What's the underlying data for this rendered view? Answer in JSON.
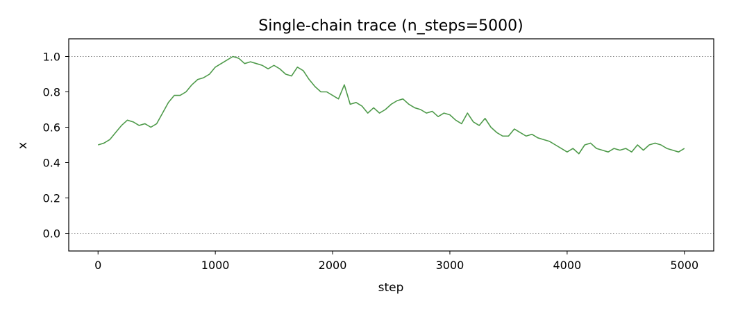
{
  "chart_data": {
    "type": "line",
    "title": "Single-chain trace (n_steps=5000)",
    "xlabel": "step",
    "ylabel": "x",
    "xlim": [
      -250,
      5250
    ],
    "ylim": [
      -0.1,
      1.1
    ],
    "xticks": [
      0,
      1000,
      2000,
      3000,
      4000,
      5000
    ],
    "yticks": [
      0.0,
      0.2,
      0.4,
      0.6,
      0.8,
      1.0
    ],
    "xtick_labels": [
      "0",
      "1000",
      "2000",
      "3000",
      "4000",
      "5000"
    ],
    "ytick_labels": [
      "0.0",
      "0.2",
      "0.4",
      "0.6",
      "0.8",
      "1.0"
    ],
    "reference_lines": [
      0.0,
      1.0
    ],
    "grid": false,
    "colors": {
      "series": "#4e9a4a",
      "reference": "#888888",
      "axes": "#000000"
    },
    "series": [
      {
        "x": [
          0,
          50,
          100,
          150,
          200,
          250,
          300,
          350,
          400,
          450,
          500,
          550,
          600,
          650,
          700,
          750,
          800,
          850,
          900,
          950,
          1000,
          1050,
          1100,
          1150,
          1200,
          1250,
          1300,
          1350,
          1400,
          1450,
          1500,
          1550,
          1600,
          1650,
          1700,
          1750,
          1800,
          1850,
          1900,
          1950,
          2000,
          2050,
          2100,
          2150,
          2200,
          2250,
          2300,
          2350,
          2400,
          2450,
          2500,
          2550,
          2600,
          2650,
          2700,
          2750,
          2800,
          2850,
          2900,
          2950,
          3000,
          3050,
          3100,
          3150,
          3200,
          3250,
          3300,
          3350,
          3400,
          3450,
          3500,
          3550,
          3600,
          3650,
          3700,
          3750,
          3800,
          3850,
          3900,
          3950,
          4000,
          4050,
          4100,
          4150,
          4200,
          4250,
          4300,
          4350,
          4400,
          4450,
          4500,
          4550,
          4600,
          4650,
          4700,
          4750,
          4800,
          4850,
          4900,
          4950,
          5000
        ],
        "y": [
          0.5,
          0.51,
          0.53,
          0.57,
          0.61,
          0.64,
          0.63,
          0.61,
          0.62,
          0.6,
          0.62,
          0.68,
          0.74,
          0.78,
          0.78,
          0.8,
          0.84,
          0.87,
          0.88,
          0.9,
          0.94,
          0.96,
          0.98,
          1.0,
          0.99,
          0.96,
          0.97,
          0.96,
          0.95,
          0.93,
          0.95,
          0.93,
          0.9,
          0.89,
          0.94,
          0.92,
          0.87,
          0.83,
          0.8,
          0.8,
          0.78,
          0.76,
          0.84,
          0.73,
          0.74,
          0.72,
          0.68,
          0.71,
          0.68,
          0.7,
          0.73,
          0.75,
          0.76,
          0.73,
          0.71,
          0.7,
          0.68,
          0.69,
          0.66,
          0.68,
          0.67,
          0.64,
          0.62,
          0.68,
          0.63,
          0.61,
          0.65,
          0.6,
          0.57,
          0.55,
          0.55,
          0.59,
          0.57,
          0.55,
          0.56,
          0.54,
          0.53,
          0.52,
          0.5,
          0.48,
          0.46,
          0.48,
          0.45,
          0.5,
          0.51,
          0.48,
          0.47,
          0.46,
          0.48,
          0.47,
          0.48,
          0.46,
          0.5,
          0.47,
          0.5,
          0.51,
          0.5,
          0.48,
          0.47,
          0.46,
          0.48
        ]
      }
    ]
  }
}
